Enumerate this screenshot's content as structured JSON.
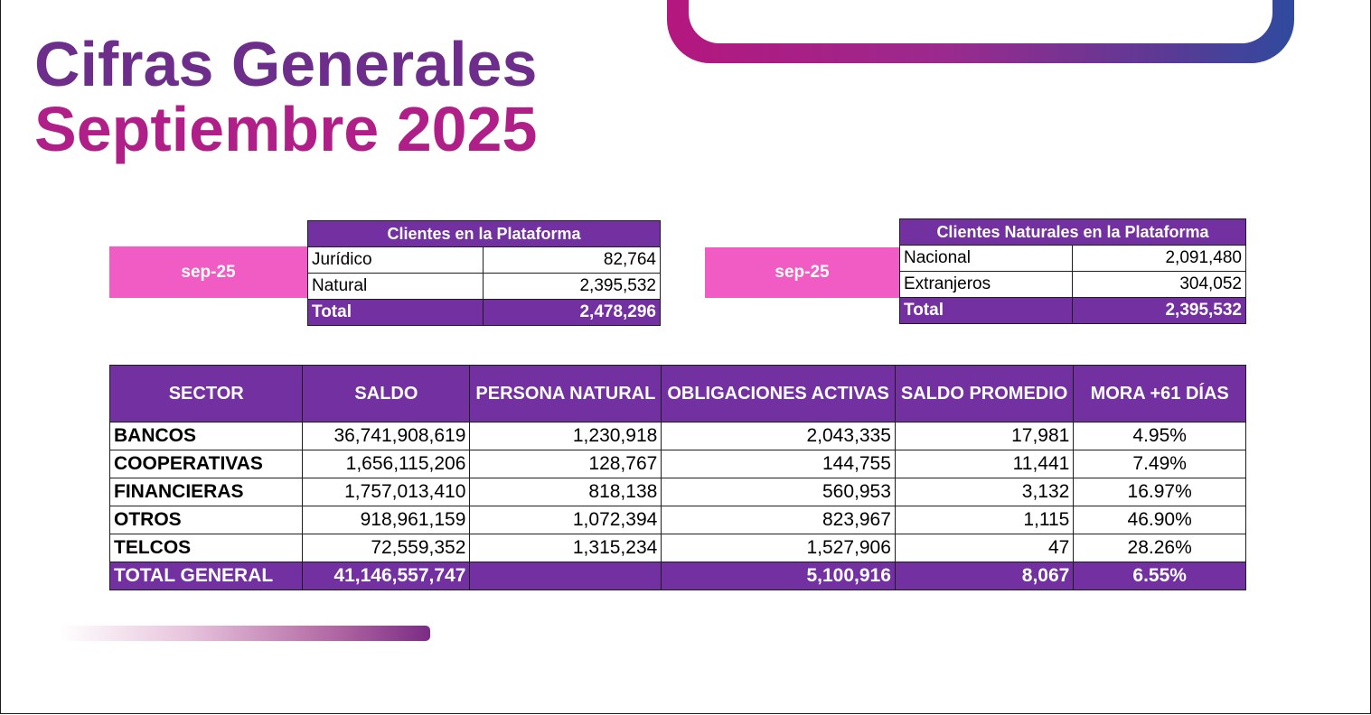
{
  "title": {
    "line1": "Cifras Generales",
    "line2": "Septiembre 2025"
  },
  "clientes_plataforma": {
    "period": "sep-25",
    "header": "Clientes en la Plataforma",
    "rows": [
      {
        "label": "Jurídico",
        "value": "82,764"
      },
      {
        "label": "Natural",
        "value": "2,395,532"
      }
    ],
    "total": {
      "label": "Total",
      "value": "2,478,296"
    }
  },
  "clientes_naturales": {
    "period": "sep-25",
    "header": "Clientes Naturales en la Plataforma",
    "rows": [
      {
        "label": "Nacional",
        "value": "2,091,480"
      },
      {
        "label": "Extranjeros",
        "value": "304,052"
      }
    ],
    "total": {
      "label": "Total",
      "value": "2,395,532"
    }
  },
  "sector_table": {
    "headers": [
      "SECTOR",
      "SALDO",
      "PERSONA NATURAL",
      "OBLIGACIONES ACTIVAS",
      "SALDO PROMEDIO",
      "MORA +61 DÍAS"
    ],
    "rows": [
      [
        "BANCOS",
        "36,741,908,619",
        "1,230,918",
        "2,043,335",
        "17,981",
        "4.95%"
      ],
      [
        "COOPERATIVAS",
        "1,656,115,206",
        "128,767",
        "144,755",
        "11,441",
        "7.49%"
      ],
      [
        "FINANCIERAS",
        "1,757,013,410",
        "818,138",
        "560,953",
        "3,132",
        "16.97%"
      ],
      [
        "OTROS",
        "918,961,159",
        "1,072,394",
        "823,967",
        "1,115",
        "46.90%"
      ],
      [
        "TELCOS",
        "72,559,352",
        "1,315,234",
        "1,527,906",
        "47",
        "28.26%"
      ]
    ],
    "total": [
      "TOTAL GENERAL",
      "41,146,557,747",
      "",
      "5,100,916",
      "8,067",
      "6.55%"
    ]
  },
  "colors": {
    "title_purple": "#6d2d8b",
    "title_magenta": "#b01f88",
    "header_purple": "#7230a0",
    "pink_tag": "#f15bc4"
  }
}
